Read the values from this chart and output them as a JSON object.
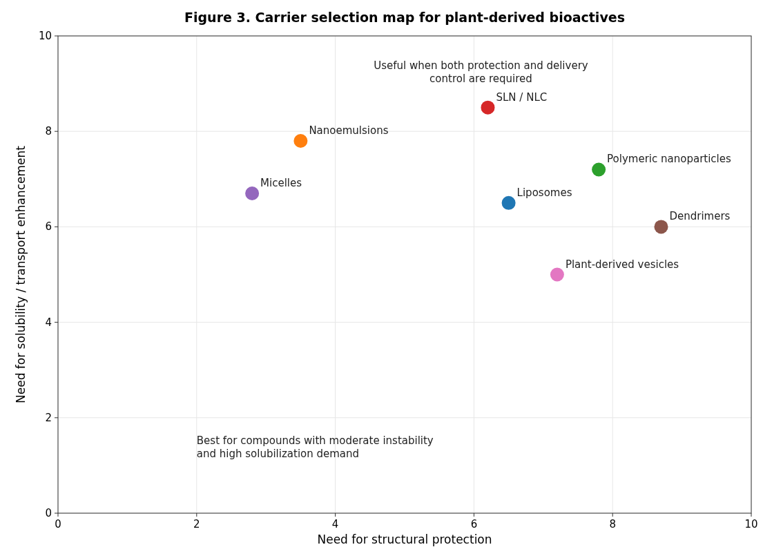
{
  "chart_data": {
    "type": "scatter",
    "title": "Figure 3. Carrier selection map for plant-derived bioactives",
    "xlabel": "Need for structural protection",
    "ylabel": "Need for solubility / transport enhancement",
    "xlim": [
      0,
      10
    ],
    "ylim": [
      0,
      10
    ],
    "xticks": [
      0,
      2,
      4,
      6,
      8,
      10
    ],
    "yticks": [
      0,
      2,
      4,
      6,
      8,
      10
    ],
    "grid": true,
    "marker": "circle",
    "series": [
      {
        "name": "Liposomes",
        "color": "#1f77b4",
        "x": [
          6.5
        ],
        "values": [
          6.5
        ]
      },
      {
        "name": "Nanoemulsions",
        "color": "#ff7f0e",
        "x": [
          3.5
        ],
        "values": [
          7.8
        ]
      },
      {
        "name": "Polymeric nanoparticles",
        "color": "#2ca02c",
        "x": [
          7.8
        ],
        "values": [
          7.2
        ]
      },
      {
        "name": "SLN / NLC",
        "color": "#d62728",
        "x": [
          6.2
        ],
        "values": [
          8.5
        ]
      },
      {
        "name": "Micelles",
        "color": "#9467bd",
        "x": [
          2.8
        ],
        "values": [
          6.7
        ]
      },
      {
        "name": "Dendrimers",
        "color": "#8c564b",
        "x": [
          8.7
        ],
        "values": [
          6.0
        ]
      },
      {
        "name": "Plant-derived vesicles",
        "color": "#e377c2",
        "x": [
          7.2
        ],
        "values": [
          5.0
        ]
      }
    ],
    "annotations": [
      "Useful when both protection and delivery\ncontrol are required",
      "Best for compounds with moderate instability\nand high solubilization demand"
    ]
  }
}
